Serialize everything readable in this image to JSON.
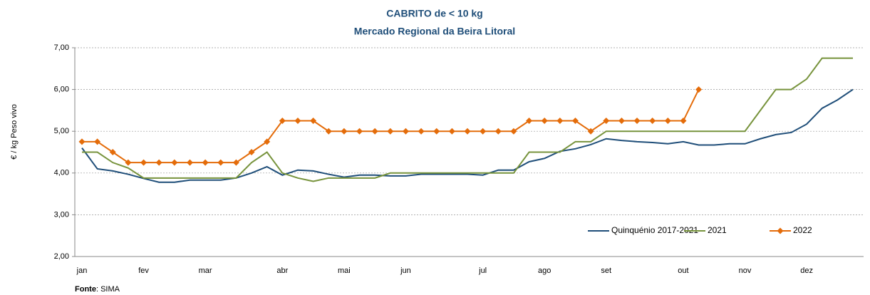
{
  "chart_data": {
    "type": "line",
    "title": "CABRITO de < 10 kg",
    "subtitle": "Mercado Regional da Beira Litoral",
    "y_label": "€ / kg Peso vivo",
    "source_label": "Fonte",
    "source_text": ": SIMA",
    "categories": [
      "jan",
      null,
      null,
      null,
      "fev",
      null,
      null,
      null,
      "mar",
      null,
      null,
      null,
      null,
      "abr",
      null,
      null,
      null,
      "mai",
      null,
      null,
      null,
      "jun",
      null,
      null,
      null,
      null,
      "jul",
      null,
      null,
      null,
      "ago",
      null,
      null,
      null,
      "set",
      null,
      null,
      null,
      null,
      "out",
      null,
      null,
      null,
      "nov",
      null,
      null,
      null,
      "dez",
      null,
      null,
      null
    ],
    "ylim": [
      2,
      7
    ],
    "yticks": [
      {
        "value": 2,
        "label": "2,00"
      },
      {
        "value": 3,
        "label": "3,00"
      },
      {
        "value": 4,
        "label": "4,00"
      },
      {
        "value": 5,
        "label": "5,00"
      },
      {
        "value": 6,
        "label": "6,00"
      },
      {
        "value": 7,
        "label": "7,00"
      }
    ],
    "grid": true,
    "legend": "lower right",
    "series": [
      {
        "name": "Quinquénio 2017-2021",
        "color": "#1f4e79",
        "marker": false,
        "values": [
          4.6,
          4.1,
          4.05,
          3.97,
          3.87,
          3.78,
          3.78,
          3.83,
          3.83,
          3.83,
          3.88,
          4.0,
          4.15,
          3.95,
          4.07,
          4.05,
          3.97,
          3.9,
          3.95,
          3.95,
          3.93,
          3.93,
          3.97,
          3.97,
          3.97,
          3.97,
          3.95,
          4.07,
          4.07,
          4.27,
          4.35,
          4.52,
          4.58,
          4.68,
          4.82,
          4.78,
          4.75,
          4.73,
          4.7,
          4.75,
          4.67,
          4.67,
          4.7,
          4.7,
          4.82,
          4.92,
          4.97,
          5.17,
          5.55,
          5.75,
          6.0
        ]
      },
      {
        "name": "2021",
        "color": "#77933c",
        "marker": false,
        "values": [
          4.5,
          4.5,
          4.25,
          4.12,
          3.88,
          3.88,
          3.88,
          3.88,
          3.88,
          3.88,
          3.88,
          4.25,
          4.5,
          4.0,
          3.88,
          3.8,
          3.88,
          3.88,
          3.88,
          3.88,
          4.0,
          4.0,
          4.0,
          4.0,
          4.0,
          4.0,
          4.0,
          4.0,
          4.0,
          4.5,
          4.5,
          4.5,
          4.75,
          4.75,
          5.0,
          5.0,
          5.0,
          5.0,
          5.0,
          5.0,
          5.0,
          5.0,
          5.0,
          5.0,
          5.5,
          6.0,
          6.0,
          6.25,
          6.75,
          6.75,
          6.75
        ]
      },
      {
        "name": "2022",
        "color": "#e46c0a",
        "marker": true,
        "values": [
          4.75,
          4.75,
          4.5,
          4.25,
          4.25,
          4.25,
          4.25,
          4.25,
          4.25,
          4.25,
          4.25,
          4.5,
          4.75,
          5.25,
          5.25,
          5.25,
          5.0,
          5.0,
          5.0,
          5.0,
          5.0,
          5.0,
          5.0,
          5.0,
          5.0,
          5.0,
          5.0,
          5.0,
          5.0,
          5.25,
          5.25,
          5.25,
          5.25,
          5.0,
          5.25,
          5.25,
          5.25,
          5.25,
          5.25,
          5.25,
          6.0,
          null,
          null,
          null,
          null,
          null,
          null,
          null,
          null,
          null,
          null
        ]
      }
    ]
  }
}
